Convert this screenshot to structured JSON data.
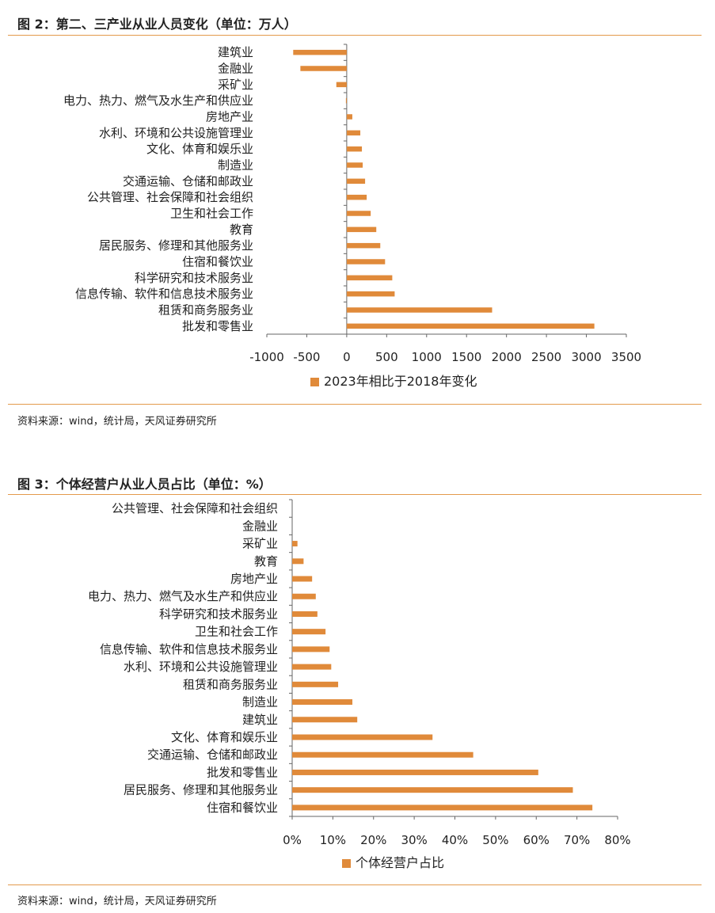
{
  "figure2": {
    "title": "图 2：第二、三产业从业人员变化（单位：万人）",
    "source": "资料来源：wind，统计局，天风证券研究所"
  },
  "figure3": {
    "title": "图 3：个体经营户从业人员占比（单位：%）",
    "source": "资料来源：wind，统计局，天风证券研究所"
  },
  "colors": {
    "bar": "#e08a3a",
    "rule": "#e39a4c",
    "axis": "#666666"
  },
  "chart_data": [
    {
      "type": "bar",
      "orientation": "horizontal",
      "categories": [
        "建筑业",
        "金融业",
        "采矿业",
        "电力、热力、燃气及水生产和供应业",
        "房地产业",
        "水利、环境和公共设施管理业",
        "文化、体育和娱乐业",
        "制造业",
        "交通运输、仓储和邮政业",
        "公共管理、社会保障和社会组织",
        "卫生和社会工作",
        "教育",
        "居民服务、修理和其他服务业",
        "住宿和餐饮业",
        "科学研究和技术服务业",
        "信息传输、软件和信息技术服务业",
        "租赁和商务服务业",
        "批发和零售业"
      ],
      "series": [
        {
          "name": "2023年相比于2018年变化",
          "values": [
            -670,
            -580,
            -130,
            -10,
            70,
            170,
            190,
            200,
            230,
            250,
            300,
            370,
            420,
            480,
            570,
            600,
            1820,
            3100
          ]
        }
      ],
      "xlim": [
        -1000,
        3500
      ],
      "xticks": [
        "-1000",
        "-500",
        "0",
        "500",
        "1000",
        "1500",
        "2000",
        "2500",
        "3000",
        "3500"
      ],
      "tick_values": [
        -1000,
        -500,
        0,
        500,
        1000,
        1500,
        2000,
        2500,
        3000,
        3500
      ],
      "legend": "bottom"
    },
    {
      "type": "bar",
      "orientation": "horizontal",
      "categories": [
        "公共管理、社会保障和社会组织",
        "金融业",
        "采矿业",
        "教育",
        "房地产业",
        "电力、热力、燃气及水生产和供应业",
        "科学研究和技术服务业",
        "卫生和社会工作",
        "信息传输、软件和信息技术服务业",
        "水利、环境和公共设施管理业",
        "租赁和商务服务业",
        "制造业",
        "建筑业",
        "文化、体育和娱乐业",
        "交通运输、仓储和邮政业",
        "批发和零售业",
        "居民服务、修理和其他服务业",
        "住宿和餐饮业"
      ],
      "series": [
        {
          "name": "个体经营户占比",
          "values": [
            0,
            0,
            1.3,
            2.8,
            4.9,
            5.8,
            6.2,
            8.2,
            9.2,
            9.6,
            11.3,
            14.8,
            16.0,
            34.5,
            44.5,
            60.5,
            69.0,
            73.8
          ]
        }
      ],
      "xlim": [
        0,
        80
      ],
      "xticks": [
        "0%",
        "10%",
        "20%",
        "30%",
        "40%",
        "50%",
        "60%",
        "70%",
        "80%"
      ],
      "tick_values": [
        0,
        10,
        20,
        30,
        40,
        50,
        60,
        70,
        80
      ],
      "legend": "bottom"
    }
  ]
}
